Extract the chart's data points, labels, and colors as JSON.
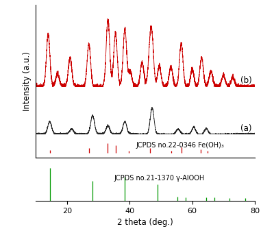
{
  "xmin": 10,
  "xmax": 80,
  "xlabel": "2 theta (deg.)",
  "ylabel": "Intensity (a.u.)",
  "label_a": "(a)",
  "label_b": "(b)",
  "fe_oh3_label": "JCPDS no.22-0346 Fe(OH)₃",
  "alooh_label": "JCPDS no.21-1370 γ-AlOOH",
  "color_b": "#cc0000",
  "color_a": "#222222",
  "color_red_lines": "#cc0000",
  "color_green_lines": "#009900",
  "fe_oh3_peaks": [
    14.5,
    27.0,
    33.0,
    35.5,
    39.8,
    46.5,
    53.4,
    56.5,
    62.8,
    65.0
  ],
  "fe_oh3_heights": [
    0.25,
    0.45,
    1.0,
    0.75,
    0.2,
    0.45,
    0.18,
    0.55,
    0.32,
    0.18
  ],
  "alooh_peaks": [
    14.5,
    28.2,
    38.5,
    49.0,
    55.2,
    57.8,
    64.5,
    67.0,
    72.0,
    77.0
  ],
  "alooh_heights": [
    0.9,
    0.55,
    0.65,
    0.45,
    0.12,
    0.1,
    0.1,
    0.1,
    0.08,
    0.08
  ],
  "peaks_b": [
    14.0,
    17.0,
    21.0,
    27.0,
    33.1,
    35.5,
    38.5,
    40.2,
    44.0,
    46.5,
    47.2,
    49.5,
    53.2,
    56.5,
    60.0,
    63.0,
    66.0,
    70.0,
    73.0
  ],
  "heights_b": [
    0.55,
    0.12,
    0.3,
    0.45,
    0.7,
    0.55,
    0.6,
    0.15,
    0.25,
    0.35,
    0.42,
    0.22,
    0.2,
    0.45,
    0.18,
    0.3,
    0.15,
    0.12,
    0.1
  ],
  "peaks_a": [
    14.5,
    21.5,
    28.2,
    33.1,
    38.5,
    47.2,
    55.5,
    60.5,
    64.5
  ],
  "heights_a": [
    0.3,
    0.12,
    0.45,
    0.2,
    0.3,
    0.65,
    0.12,
    0.18,
    0.15
  ]
}
